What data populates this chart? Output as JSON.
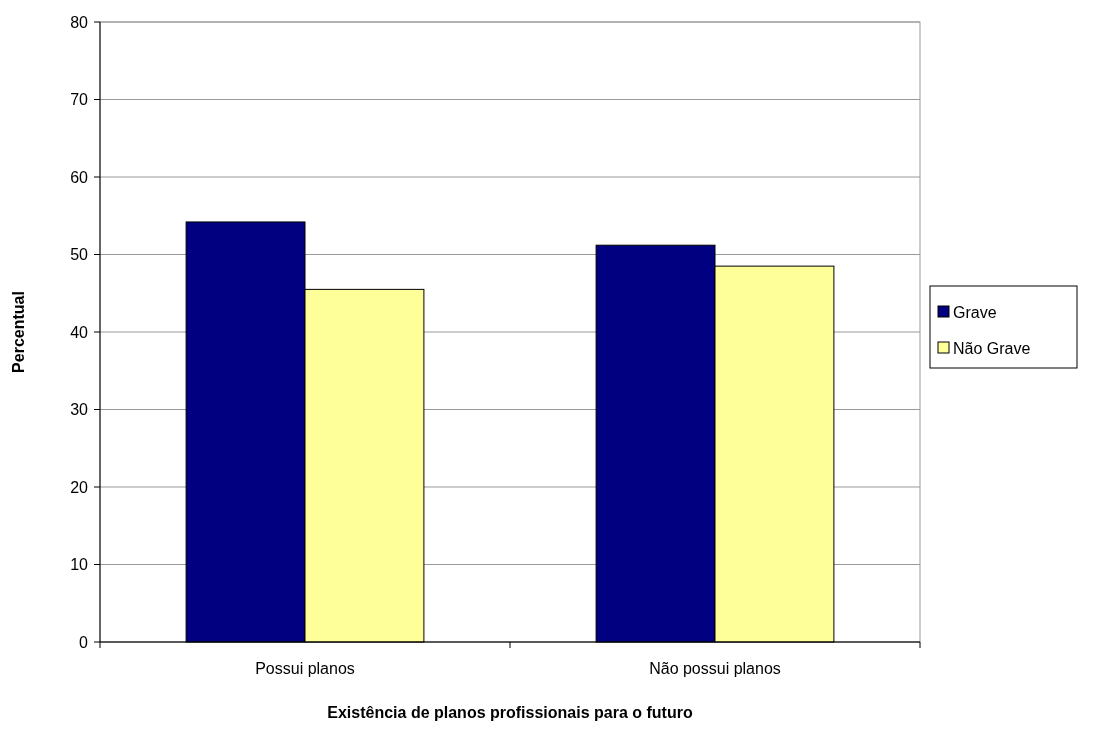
{
  "chart_data": {
    "type": "bar",
    "xlabel": "Existência de planos profissionais para o futuro",
    "ylabel": "Percentual",
    "categories": [
      "Possui planos",
      "Não possui planos"
    ],
    "series": [
      {
        "name": "Grave",
        "color": "#000080",
        "values": [
          54.2,
          51.2
        ]
      },
      {
        "name": "Não Grave",
        "color": "#ffff99",
        "values": [
          45.5,
          48.5
        ]
      }
    ],
    "ylim": [
      0,
      80
    ],
    "yticks": [
      0,
      10,
      20,
      30,
      40,
      50,
      60,
      70,
      80
    ],
    "grid": "y",
    "legend": "right"
  }
}
